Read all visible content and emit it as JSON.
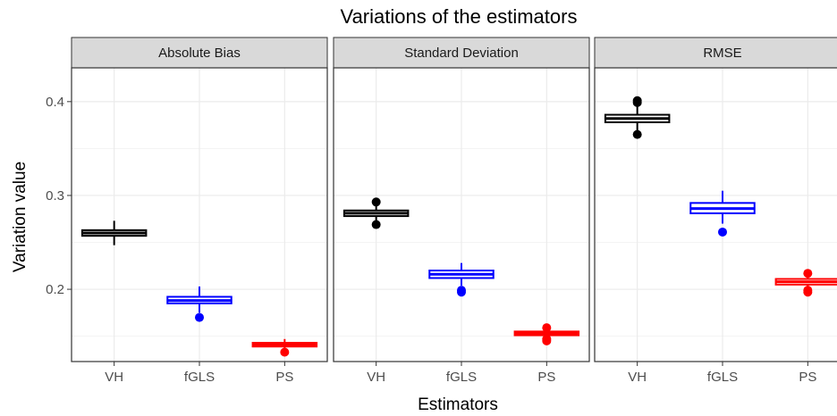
{
  "chart_data": {
    "type": "boxplot",
    "title": "Variations of the estimators",
    "xlabel": "Estimators",
    "ylabel": "Variation value",
    "ylim": [
      0.123,
      0.436
    ],
    "yticks": [
      0.2,
      0.3,
      0.4
    ],
    "yticks_labels": [
      "0.2",
      "0.3",
      "0.4"
    ],
    "categories": [
      "VH",
      "fGLS",
      "PS"
    ],
    "colors": {
      "VH": "#000000",
      "fGLS": "#0000ff",
      "PS": "#ff0000"
    },
    "grid": true,
    "panels": [
      {
        "name": "Absolute Bias",
        "boxes": [
          {
            "category": "VH",
            "whisker_low": 0.247,
            "q1": 0.257,
            "median": 0.26,
            "q3": 0.263,
            "whisker_high": 0.273,
            "outliers": []
          },
          {
            "category": "fGLS",
            "whisker_low": 0.175,
            "q1": 0.185,
            "median": 0.188,
            "q3": 0.192,
            "whisker_high": 0.203,
            "outliers": [
              0.17
            ]
          },
          {
            "category": "PS",
            "whisker_low": 0.136,
            "q1": 0.139,
            "median": 0.141,
            "q3": 0.143,
            "whisker_high": 0.147,
            "outliers": [
              0.133
            ]
          }
        ]
      },
      {
        "name": "Standard Deviation",
        "boxes": [
          {
            "category": "VH",
            "whisker_low": 0.272,
            "q1": 0.278,
            "median": 0.281,
            "q3": 0.284,
            "whisker_high": 0.29,
            "outliers": [
              0.269,
              0.293
            ]
          },
          {
            "category": "fGLS",
            "whisker_low": 0.204,
            "q1": 0.212,
            "median": 0.216,
            "q3": 0.22,
            "whisker_high": 0.228,
            "outliers": [
              0.197,
              0.199
            ]
          },
          {
            "category": "PS",
            "whisker_low": 0.149,
            "q1": 0.151,
            "median": 0.153,
            "q3": 0.155,
            "whisker_high": 0.157,
            "outliers": [
              0.145,
              0.147,
              0.159
            ]
          }
        ]
      },
      {
        "name": "RMSE",
        "boxes": [
          {
            "category": "VH",
            "whisker_low": 0.368,
            "q1": 0.378,
            "median": 0.382,
            "q3": 0.386,
            "whisker_high": 0.396,
            "outliers": [
              0.365,
              0.399,
              0.401
            ]
          },
          {
            "category": "fGLS",
            "whisker_low": 0.27,
            "q1": 0.281,
            "median": 0.286,
            "q3": 0.292,
            "whisker_high": 0.305,
            "outliers": [
              0.261
            ]
          },
          {
            "category": "PS",
            "whisker_low": 0.2,
            "q1": 0.205,
            "median": 0.208,
            "q3": 0.211,
            "whisker_high": 0.216,
            "outliers": [
              0.197,
              0.199,
              0.217
            ]
          }
        ]
      }
    ]
  }
}
